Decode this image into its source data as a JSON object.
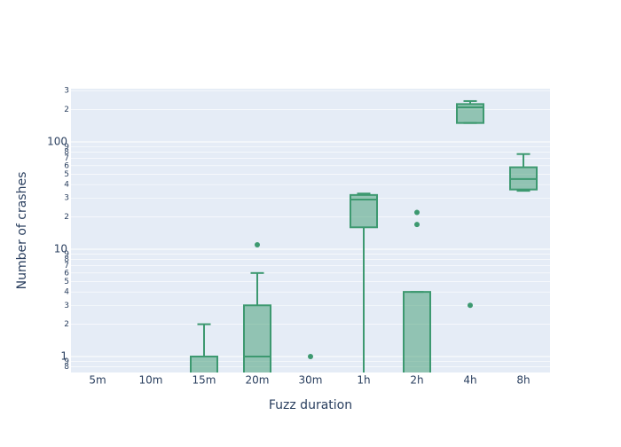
{
  "chart_data": {
    "type": "box",
    "x_label": "Fuzz duration",
    "y_label": "Number of crashes",
    "log_y": true,
    "grid": true,
    "color": "#3d9970",
    "categories": [
      "5m",
      "10m",
      "15m",
      "20m",
      "30m",
      "1h",
      "2h",
      "4h",
      "8h"
    ],
    "boxes": [
      {
        "lower": 0,
        "q1": 0,
        "median": 0,
        "q3": 0,
        "upper": 0,
        "outliers": []
      },
      {
        "lower": 0,
        "q1": 0,
        "median": 0,
        "q3": 0,
        "upper": 0,
        "outliers": []
      },
      {
        "lower": 0,
        "q1": 0,
        "median": 0,
        "q3": 1,
        "upper": 2,
        "outliers": []
      },
      {
        "lower": 0,
        "q1": 0,
        "median": 1,
        "q3": 3,
        "upper": 6,
        "outliers": [
          11
        ]
      },
      {
        "lower": 0,
        "q1": 0,
        "median": 0,
        "q3": 0,
        "upper": 0,
        "outliers": [
          1
        ]
      },
      {
        "lower": 0,
        "q1": 16,
        "median": 29,
        "q3": 32,
        "upper": 33,
        "outliers": []
      },
      {
        "lower": 0,
        "q1": 0,
        "median": 0,
        "q3": 4,
        "upper": 4,
        "outliers": [
          17,
          22
        ]
      },
      {
        "lower": 150,
        "q1": 150,
        "median": 210,
        "q3": 225,
        "upper": 240,
        "outliers": [
          3
        ]
      },
      {
        "lower": 35,
        "q1": 36,
        "median": 45,
        "q3": 58,
        "upper": 77,
        "outliers": []
      }
    ],
    "ylim": [
      0.71,
      313
    ],
    "yticks": [
      {
        "value": 0.8,
        "label": "8"
      },
      {
        "value": 0.9,
        "label": "9"
      },
      1,
      2,
      3,
      4,
      5,
      6,
      7,
      8,
      9,
      10,
      {
        "value": 20,
        "label": "2"
      },
      {
        "value": 30,
        "label": "3"
      },
      {
        "value": 40,
        "label": "4"
      },
      {
        "value": 50,
        "label": "5"
      },
      {
        "value": 60,
        "label": "6"
      },
      {
        "value": 70,
        "label": "7"
      },
      {
        "value": 80,
        "label": "8"
      },
      {
        "value": 90,
        "label": "9"
      },
      100,
      {
        "value": 200,
        "label": "2"
      },
      {
        "value": 300,
        "label": "3"
      }
    ]
  }
}
